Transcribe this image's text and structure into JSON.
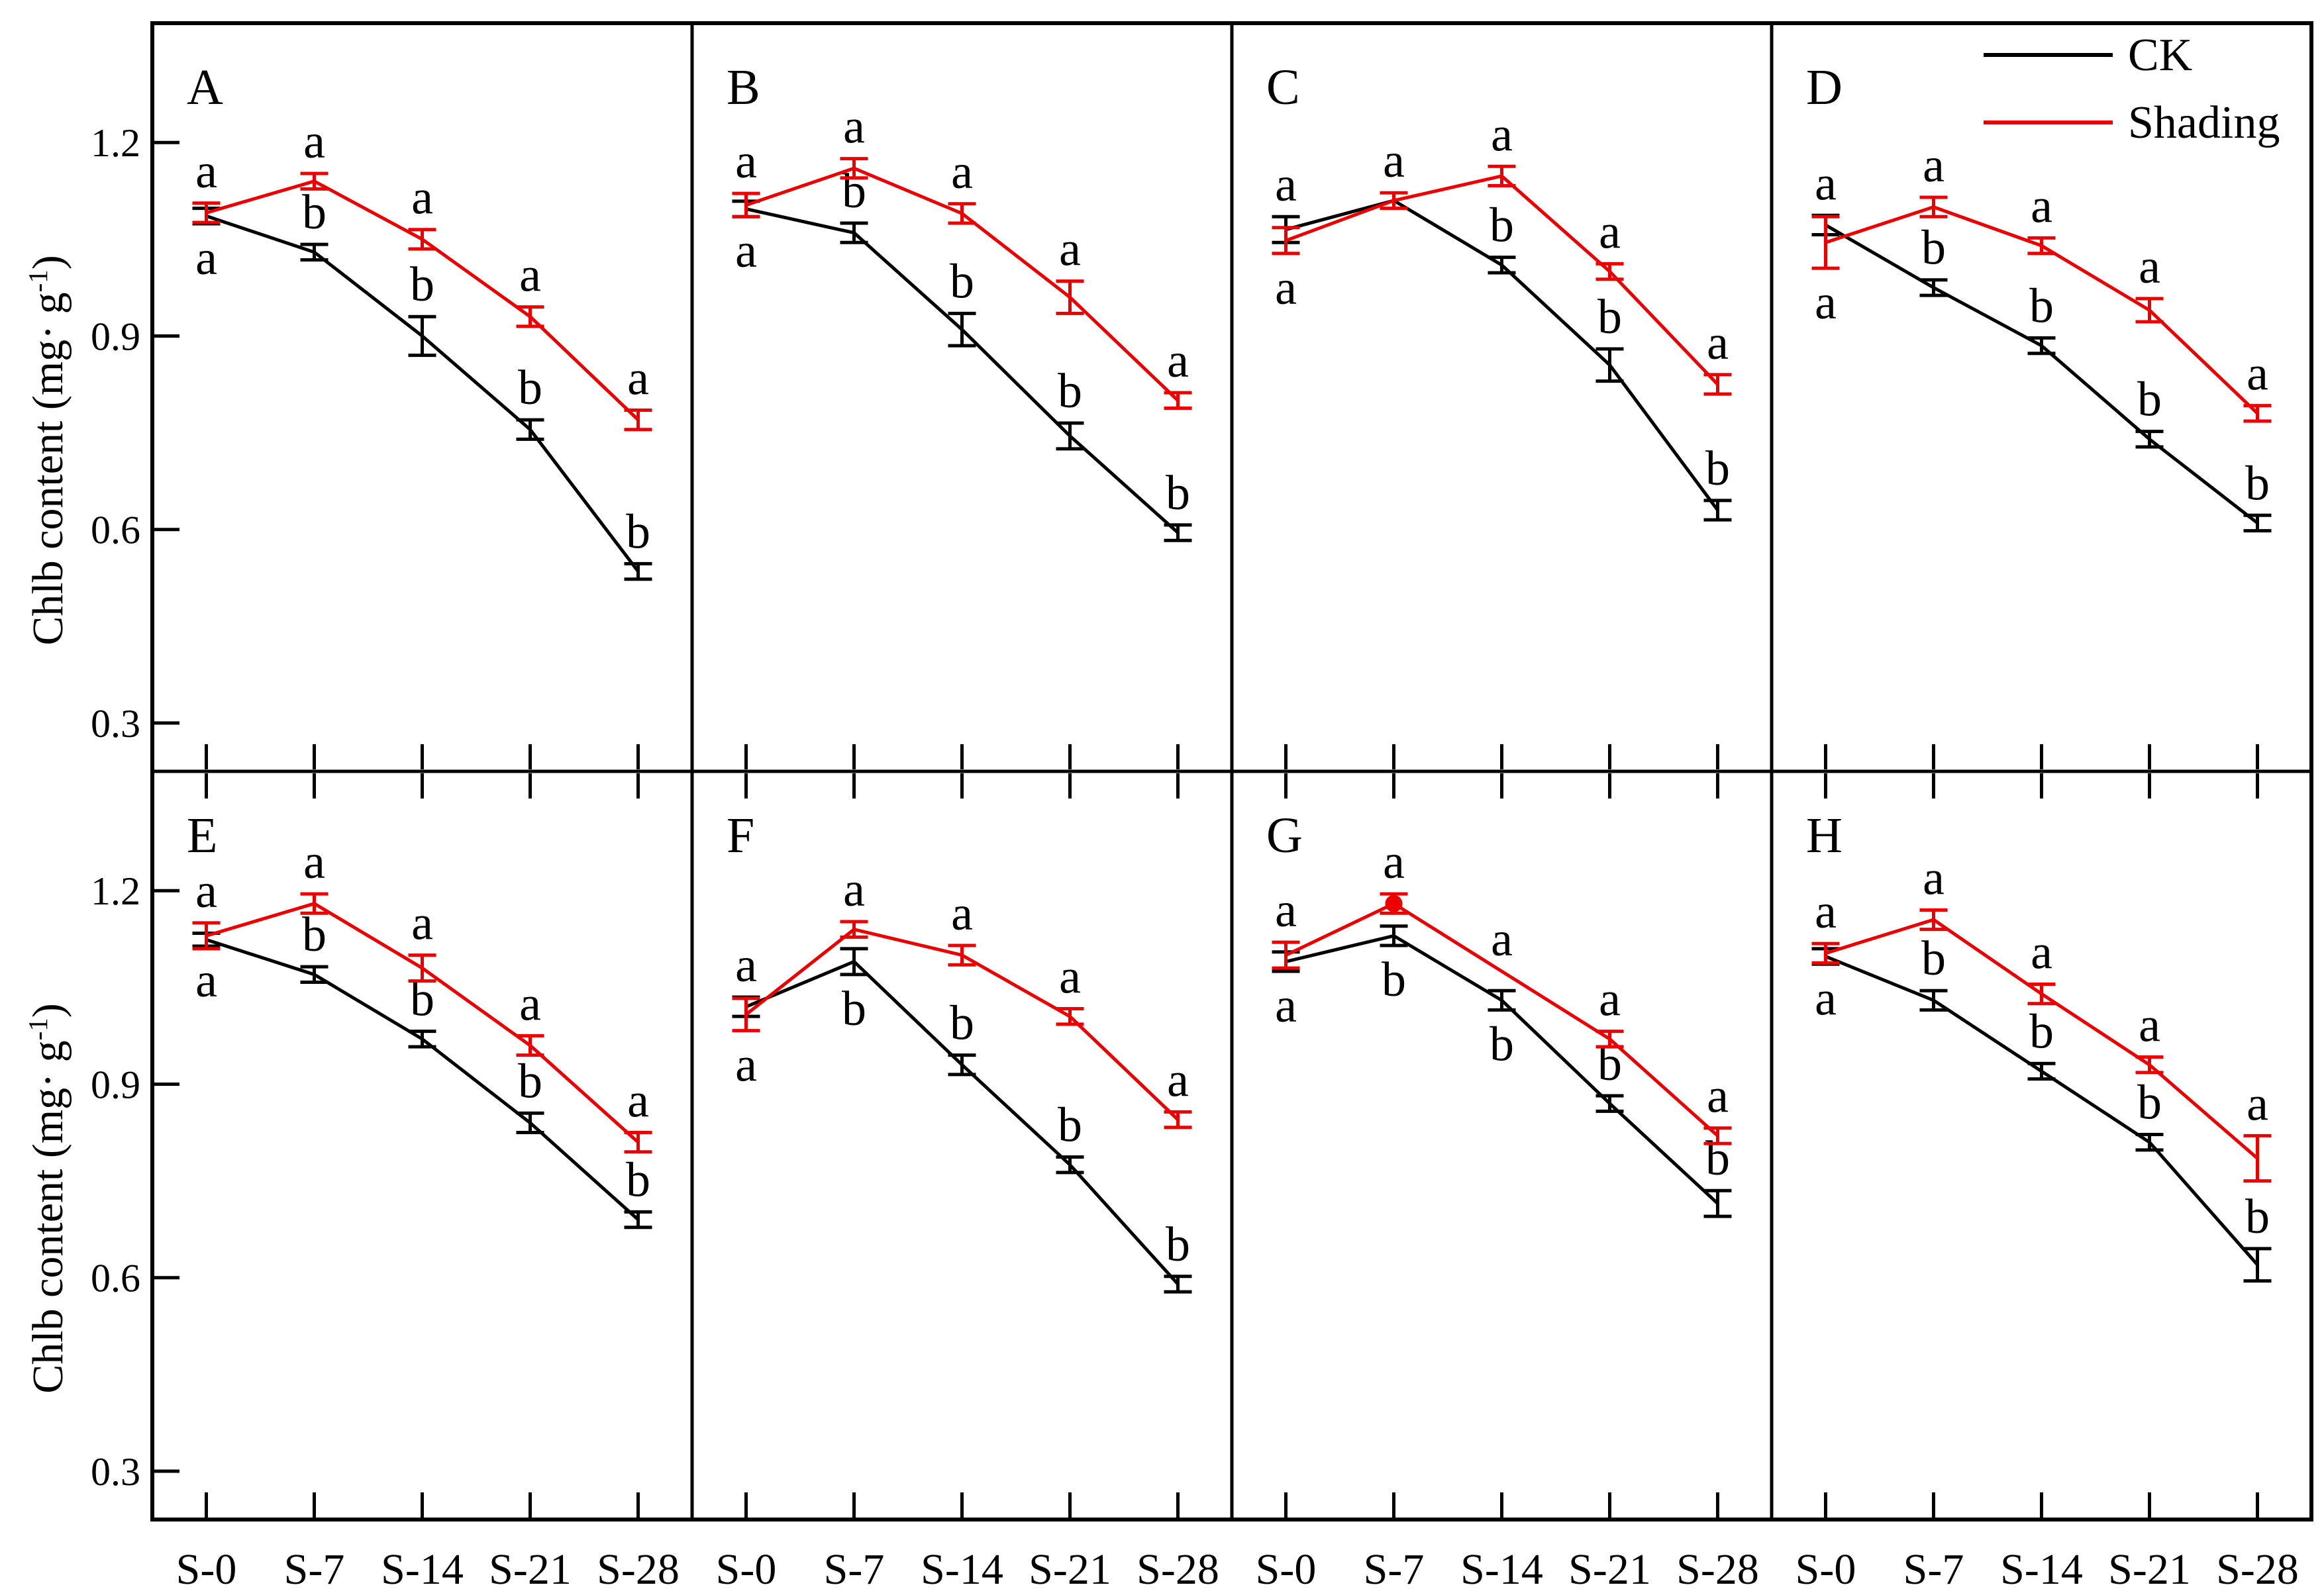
{
  "figure": {
    "ylabel_main": "Chlb content (mg· g",
    "ylabel_sup": "-1",
    "ylabel_close": ")"
  },
  "legend": {
    "items": [
      {
        "label": "CK",
        "color": "#000000"
      },
      {
        "label": "Shading",
        "color": "#ee0000"
      }
    ]
  },
  "chart_data": {
    "type": "line",
    "categories": [
      "S-0",
      "S-7",
      "S-14",
      "S-21",
      "S-28"
    ],
    "yticks": [
      "1.2",
      "0.9",
      "0.6",
      "0.3"
    ],
    "ytick_values": [
      1.2,
      0.9,
      0.6,
      0.3
    ],
    "ylim": [
      0.225,
      1.385
    ],
    "ylabel": "Chlb content (mg· g-1)",
    "grid": false,
    "legend_position": "inside top-right of panel D",
    "colors": {
      "ck": "#000000",
      "shading": "#ee0000"
    },
    "panels": [
      {
        "label": "A",
        "legend": false,
        "series": [
          {
            "name": "CK",
            "color_key": "ck",
            "values": [
              1.086,
              1.03,
              0.9,
              0.755,
              0.535
            ],
            "errors": [
              0.012,
              0.012,
              0.03,
              0.015,
              0.012
            ],
            "letters": [
              "a",
              "b",
              "b",
              "b",
              "b"
            ],
            "letter_pos": [
              "below",
              "above",
              "above",
              "above",
              "above"
            ],
            "marker_indices": []
          },
          {
            "name": "Shading",
            "color_key": "shading",
            "values": [
              1.091,
              1.14,
              1.05,
              0.93,
              0.77
            ],
            "errors": [
              0.015,
              0.012,
              0.015,
              0.015,
              0.015
            ],
            "letters": [
              "a",
              "a",
              "a",
              "a",
              "a"
            ],
            "letter_pos": [
              "above",
              "above",
              "above",
              "above",
              "above"
            ],
            "marker_indices": []
          }
        ]
      },
      {
        "label": "B",
        "legend": false,
        "series": [
          {
            "name": "CK",
            "color_key": "ck",
            "values": [
              1.097,
              1.06,
              0.91,
              0.745,
              0.595
            ],
            "errors": [
              0.012,
              0.015,
              0.025,
              0.02,
              0.012
            ],
            "letters": [
              "a",
              "b",
              "b",
              "b",
              "b"
            ],
            "letter_pos": [
              "below",
              "above",
              "above",
              "above",
              "above"
            ],
            "marker_indices": []
          },
          {
            "name": "Shading",
            "color_key": "shading",
            "values": [
              1.103,
              1.16,
              1.09,
              0.96,
              0.8
            ],
            "errors": [
              0.018,
              0.015,
              0.015,
              0.025,
              0.012
            ],
            "letters": [
              "a",
              "a",
              "a",
              "a",
              "a"
            ],
            "letter_pos": [
              "above",
              "above",
              "above",
              "above",
              "above"
            ],
            "marker_indices": []
          }
        ]
      },
      {
        "label": "C",
        "legend": false,
        "series": [
          {
            "name": "CK",
            "color_key": "ck",
            "values": [
              1.065,
              1.11,
              1.01,
              0.855,
              0.63
            ],
            "errors": [
              0.02,
              0,
              0.012,
              0.025,
              0.015
            ],
            "letters": [
              "a",
              "",
              "b",
              "b",
              "b"
            ],
            "letter_pos": [
              "above",
              "",
              "above",
              "above",
              "above"
            ],
            "marker_indices": []
          },
          {
            "name": "Shading",
            "color_key": "shading",
            "values": [
              1.048,
              1.11,
              1.148,
              1.0,
              0.825
            ],
            "errors": [
              0.02,
              0.012,
              0.015,
              0.012,
              0.015
            ],
            "letters": [
              "a",
              "a",
              "a",
              "a",
              "a"
            ],
            "letter_pos": [
              "below",
              "above",
              "above",
              "above",
              "above"
            ],
            "marker_indices": []
          }
        ]
      },
      {
        "label": "D",
        "legend": true,
        "series": [
          {
            "name": "CK",
            "color_key": "ck",
            "values": [
              1.072,
              0.975,
              0.885,
              0.74,
              0.61
            ],
            "errors": [
              0.015,
              0.012,
              0.012,
              0.012,
              0.012
            ],
            "letters": [
              "a",
              "b",
              "b",
              "b",
              "b"
            ],
            "letter_pos": [
              "above",
              "above",
              "above",
              "above",
              "above"
            ],
            "marker_indices": []
          },
          {
            "name": "Shading",
            "color_key": "shading",
            "values": [
              1.045,
              1.1,
              1.04,
              0.94,
              0.78
            ],
            "errors": [
              0.04,
              0.015,
              0.012,
              0.018,
              0.012
            ],
            "letters": [
              "a",
              "a",
              "a",
              "a",
              "a"
            ],
            "letter_pos": [
              "below",
              "above",
              "above",
              "above",
              "above"
            ],
            "marker_indices": []
          }
        ]
      },
      {
        "label": "E",
        "legend": false,
        "series": [
          {
            "name": "CK",
            "color_key": "ck",
            "values": [
              1.124,
              1.07,
              0.97,
              0.84,
              0.69
            ],
            "errors": [
              0.01,
              0.012,
              0.012,
              0.015,
              0.012
            ],
            "letters": [
              "a",
              "b",
              "b",
              "b",
              "b"
            ],
            "letter_pos": [
              "below",
              "above",
              "above",
              "above",
              "above"
            ],
            "marker_indices": []
          },
          {
            "name": "Shading",
            "color_key": "shading",
            "values": [
              1.13,
              1.18,
              1.08,
              0.96,
              0.81
            ],
            "errors": [
              0.02,
              0.015,
              0.02,
              0.015,
              0.015
            ],
            "letters": [
              "a",
              "a",
              "a",
              "a",
              "a"
            ],
            "letter_pos": [
              "above",
              "above",
              "above",
              "above",
              "above"
            ],
            "marker_indices": []
          }
        ]
      },
      {
        "label": "F",
        "legend": false,
        "series": [
          {
            "name": "CK",
            "color_key": "ck",
            "values": [
              1.02,
              1.09,
              0.93,
              0.775,
              0.59
            ],
            "errors": [
              0.015,
              0.02,
              0.015,
              0.012,
              0.012
            ],
            "letters": [
              "a",
              "b",
              "b",
              "b",
              "b"
            ],
            "letter_pos": [
              "above",
              "below",
              "above",
              "above",
              "above"
            ],
            "marker_indices": []
          },
          {
            "name": "Shading",
            "color_key": "shading",
            "values": [
              1.008,
              1.14,
              1.1,
              1.005,
              0.845
            ],
            "errors": [
              0.025,
              0.012,
              0.015,
              0.012,
              0.012
            ],
            "letters": [
              "a",
              "a",
              "a",
              "a",
              "a"
            ],
            "letter_pos": [
              "below",
              "above",
              "above",
              "above",
              "above"
            ],
            "marker_indices": []
          }
        ]
      },
      {
        "label": "G",
        "legend": false,
        "series": [
          {
            "name": "CK",
            "color_key": "ck",
            "values": [
              1.09,
              1.13,
              1.03,
              0.87,
              0.715
            ],
            "errors": [
              0.015,
              0.015,
              0.015,
              0.012,
              0.02
            ],
            "letters": [
              "a",
              "b",
              "b",
              "b",
              "b"
            ],
            "letter_pos": [
              "below",
              "below",
              "below",
              "above",
              "above"
            ],
            "marker_indices": []
          },
          {
            "name": "Shading",
            "color_key": "shading",
            "values": [
              1.1,
              1.18,
              1.075,
              0.97,
              0.82
            ],
            "errors": [
              0.02,
              0.015,
              0,
              0.012,
              0.012
            ],
            "letters": [
              "a",
              "a",
              "a",
              "a",
              "a"
            ],
            "letter_pos": [
              "above",
              "above",
              "above",
              "above",
              "above"
            ],
            "marker_indices": [
              1
            ]
          }
        ]
      },
      {
        "label": "H",
        "legend": false,
        "series": [
          {
            "name": "CK",
            "color_key": "ck",
            "values": [
              1.098,
              1.03,
              0.92,
              0.81,
              0.62
            ],
            "errors": [
              0.012,
              0.015,
              0.012,
              0.012,
              0.025
            ],
            "letters": [
              "a",
              "b",
              "b",
              "b",
              "b"
            ],
            "letter_pos": [
              "below",
              "above",
              "above",
              "above",
              "above"
            ],
            "marker_indices": []
          },
          {
            "name": "Shading",
            "color_key": "shading",
            "values": [
              1.103,
              1.155,
              1.04,
              0.93,
              0.785
            ],
            "errors": [
              0.015,
              0.015,
              0.015,
              0.012,
              0.035
            ],
            "letters": [
              "a",
              "a",
              "a",
              "a",
              "a"
            ],
            "letter_pos": [
              "above",
              "above",
              "above",
              "above",
              "above"
            ],
            "marker_indices": []
          }
        ]
      }
    ]
  }
}
